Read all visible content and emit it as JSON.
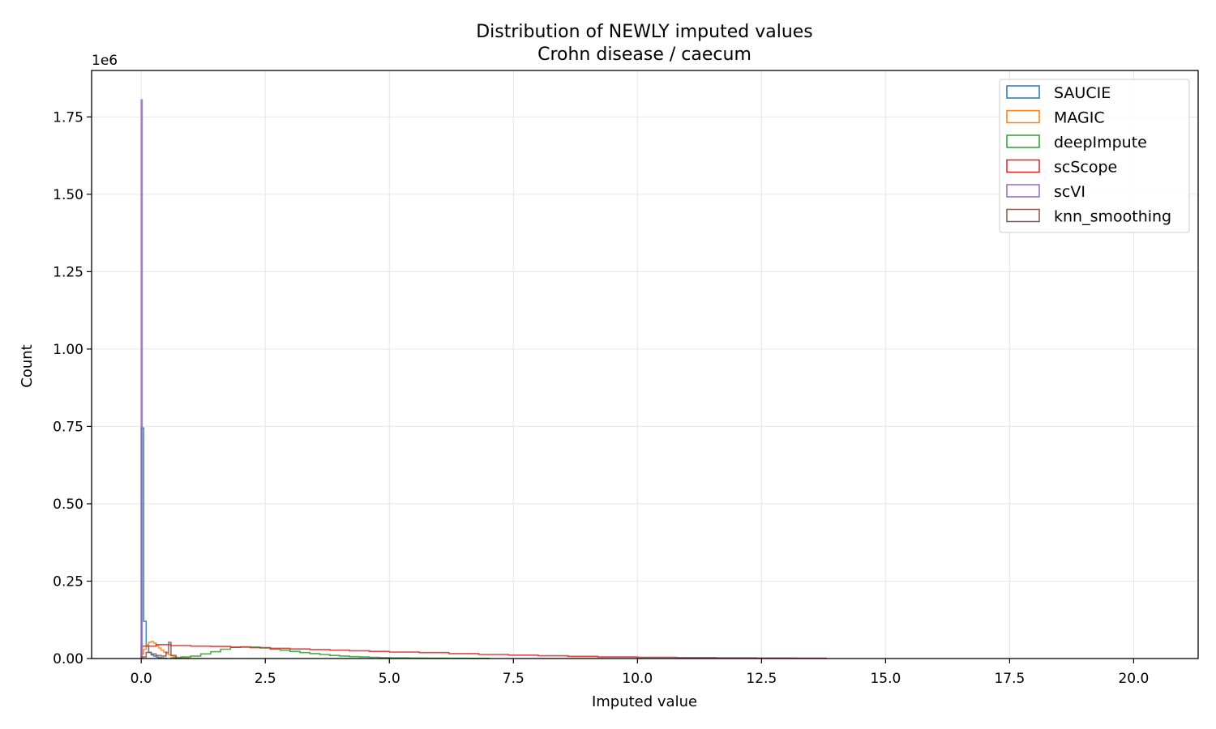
{
  "chart_data": {
    "type": "histogram",
    "title": "Distribution of NEWLY imputed values",
    "subtitle": "Crohn disease / caecum",
    "xlabel": "Imputed value",
    "ylabel": "Count",
    "y_offset_label": "1e6",
    "xlim": [
      -1.0,
      21.3
    ],
    "ylim": [
      0,
      1.9
    ],
    "x_ticks": [
      "0.0",
      "2.5",
      "5.0",
      "7.5",
      "10.0",
      "12.5",
      "15.0",
      "17.5",
      "20.0"
    ],
    "y_ticks": [
      "0.00",
      "0.25",
      "0.50",
      "0.75",
      "1.00",
      "1.25",
      "1.50",
      "1.75"
    ],
    "grid": true,
    "legend_position": "top-right",
    "histtype": "step",
    "series": [
      {
        "name": "SAUCIE",
        "color": "#1f77b4",
        "x": [
          0.0,
          0.05,
          0.1,
          0.15,
          0.2,
          0.25,
          0.3,
          0.35,
          0.4,
          0.45,
          0.5
        ],
        "y": [
          0.745,
          0.12,
          0.04,
          0.02,
          0.012,
          0.008,
          0.005,
          0.003,
          0.002,
          0.001,
          0.0
        ]
      },
      {
        "name": "MAGIC",
        "color": "#ff7f0e",
        "x": [
          0.0,
          0.05,
          0.1,
          0.15,
          0.2,
          0.25,
          0.3,
          0.35,
          0.4,
          0.45,
          0.5,
          0.55,
          0.6,
          0.65,
          0.7,
          0.75,
          0.8,
          0.85,
          0.9,
          0.95
        ],
        "y": [
          0.015,
          0.03,
          0.045,
          0.052,
          0.055,
          0.05,
          0.042,
          0.034,
          0.027,
          0.021,
          0.016,
          0.012,
          0.009,
          0.006,
          0.004,
          0.003,
          0.002,
          0.001,
          0.0005,
          0.0
        ]
      },
      {
        "name": "deepImpute",
        "color": "#2ca02c",
        "x": [
          0.6,
          0.8,
          1.0,
          1.2,
          1.4,
          1.6,
          1.8,
          2.0,
          2.2,
          2.4,
          2.6,
          2.8,
          3.0,
          3.2,
          3.4,
          3.6,
          3.8,
          4.0,
          4.2,
          4.4,
          4.6,
          4.8,
          5.0,
          5.4,
          5.8,
          6.2,
          6.6,
          7.0
        ],
        "y": [
          0.002,
          0.005,
          0.008,
          0.015,
          0.022,
          0.03,
          0.036,
          0.038,
          0.037,
          0.034,
          0.03,
          0.027,
          0.023,
          0.019,
          0.016,
          0.013,
          0.01,
          0.008,
          0.006,
          0.005,
          0.004,
          0.003,
          0.002,
          0.0015,
          0.001,
          0.0007,
          0.0004,
          0.0
        ]
      },
      {
        "name": "scScope",
        "color": "#d62728",
        "x": [
          0.0,
          0.3,
          0.6,
          1.0,
          1.4,
          1.8,
          2.2,
          2.6,
          3.0,
          3.4,
          3.8,
          4.2,
          4.6,
          5.0,
          5.6,
          6.2,
          6.8,
          7.4,
          8.0,
          8.6,
          9.2,
          10.0,
          10.8,
          11.6,
          12.4,
          13.2,
          13.8
        ],
        "y": [
          0.04,
          0.045,
          0.042,
          0.04,
          0.039,
          0.037,
          0.035,
          0.033,
          0.031,
          0.029,
          0.027,
          0.025,
          0.023,
          0.021,
          0.019,
          0.016,
          0.013,
          0.011,
          0.009,
          0.007,
          0.005,
          0.004,
          0.003,
          0.002,
          0.0015,
          0.001,
          0.0
        ]
      },
      {
        "name": "scVI",
        "color": "#9467bd",
        "x": [
          0.0,
          0.02
        ],
        "y": [
          1.805,
          0.0
        ]
      },
      {
        "name": "knn_smoothing",
        "color": "#8c564b",
        "x": [
          0.0,
          0.1,
          0.2,
          0.3,
          0.4,
          0.5,
          0.55,
          0.6,
          0.7
        ],
        "y": [
          0.005,
          0.02,
          0.015,
          0.01,
          0.008,
          0.02,
          0.052,
          0.01,
          0.0
        ]
      }
    ]
  }
}
